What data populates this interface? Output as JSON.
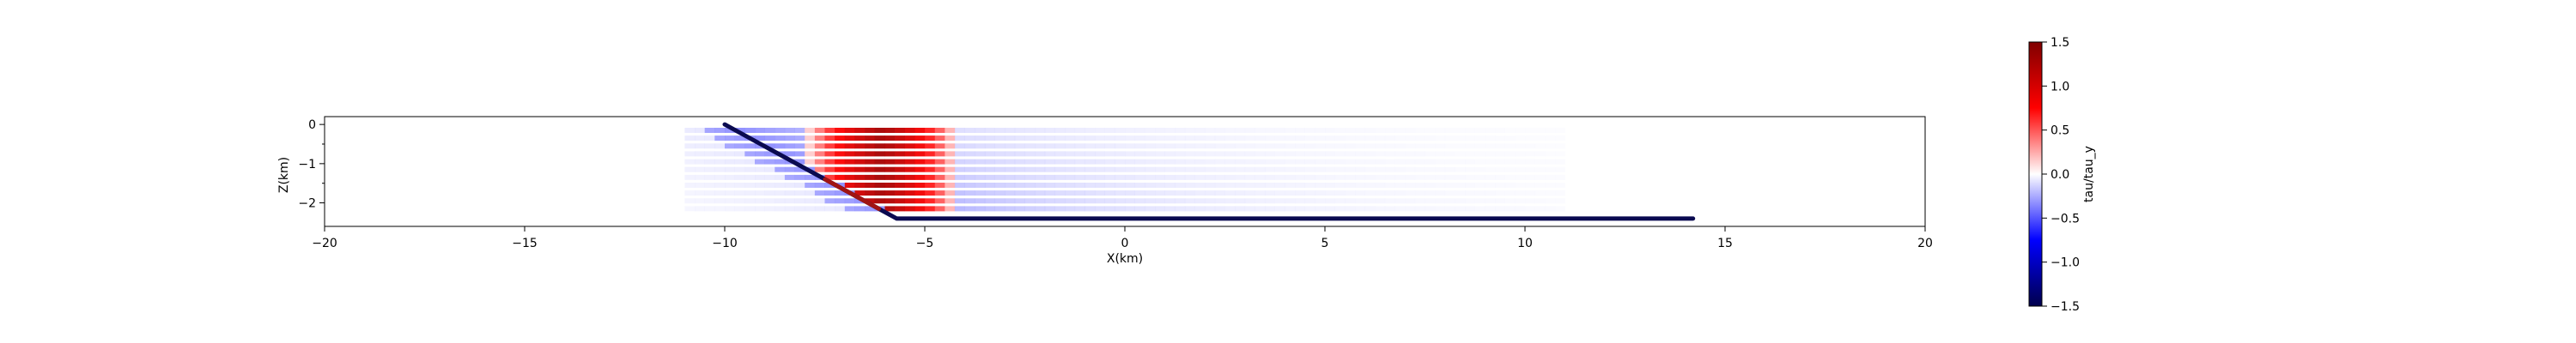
{
  "chart_data": {
    "type": "heatmap",
    "xlabel": "X(km)",
    "ylabel": "Z(km)",
    "xlim": [
      -20,
      20
    ],
    "ylim": [
      -2.6,
      0.2
    ],
    "x_ticks": [
      -20,
      -15,
      -10,
      -5,
      0,
      5,
      10,
      15,
      20
    ],
    "x_tick_labels": [
      "−20",
      "−15",
      "−10",
      "−5",
      "0",
      "5",
      "10",
      "15",
      "20"
    ],
    "y_ticks": [
      0,
      -1,
      -2
    ],
    "y_tick_labels": [
      "0",
      "−1",
      "−2"
    ],
    "y_minor_ticks": [
      -0.5,
      -1.5
    ],
    "fault_line": {
      "color": "#0a0a50",
      "points": [
        [
          -10.0,
          0.0
        ],
        [
          -5.7,
          -2.4
        ],
        [
          14.2,
          -2.4
        ]
      ]
    },
    "stress_rows": {
      "z_values": [
        -0.15,
        -0.35,
        -0.55,
        -0.75,
        -0.95,
        -1.15,
        -1.35,
        -1.55,
        -1.75,
        -1.95,
        -2.15
      ],
      "x_start": -11,
      "x_end": 11,
      "hot_zone": {
        "center_x": -6.2,
        "value": 1.3,
        "half_width_km": 1.8
      },
      "background_value": -0.4,
      "fault_tip_value": 1.3
    },
    "colorbar": {
      "label": "tau/tau_y",
      "min": -1.5,
      "max": 1.5,
      "ticks": [
        1.5,
        1.0,
        0.5,
        0.0,
        -0.5,
        -1.0,
        -1.5
      ],
      "tick_labels": [
        "1.5",
        "1.0",
        "0.5",
        "0.0",
        "−0.5",
        "−1.0",
        "−1.5"
      ],
      "colormap": "seismic"
    }
  }
}
